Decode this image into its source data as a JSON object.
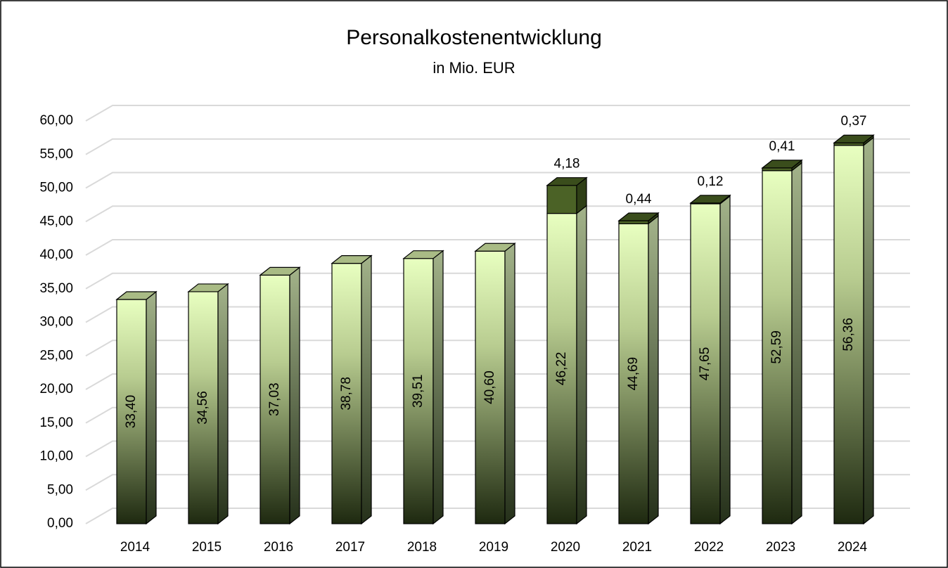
{
  "chart_data": {
    "type": "bar",
    "stacked": true,
    "title": "Personalkostenentwicklung",
    "subtitle": "in Mio. EUR",
    "categories": [
      "2014",
      "2015",
      "2016",
      "2017",
      "2018",
      "2019",
      "2020",
      "2021",
      "2022",
      "2023",
      "2024"
    ],
    "series": [
      {
        "color": "#e8ffc0",
        "values": [
          33.4,
          34.56,
          37.03,
          38.78,
          39.51,
          40.6,
          46.22,
          44.69,
          47.65,
          52.59,
          56.36
        ],
        "value_labels": [
          "33,40",
          "34,56",
          "37,03",
          "38,78",
          "39,51",
          "40,60",
          "46,22",
          "44,69",
          "47,65",
          "52,59",
          "56,36"
        ]
      },
      {
        "color": "#4b6226",
        "values": [
          null,
          null,
          null,
          null,
          null,
          null,
          4.18,
          0.44,
          0.12,
          0.41,
          0.37
        ],
        "value_labels": [
          null,
          null,
          null,
          null,
          null,
          null,
          "4,18",
          "0,44",
          "0,12",
          "0,41",
          "0,37"
        ]
      }
    ],
    "ylim": [
      0,
      60
    ],
    "yticks": [
      {
        "value": 0,
        "label": "0,00"
      },
      {
        "value": 5,
        "label": "5,00"
      },
      {
        "value": 10,
        "label": "10,00"
      },
      {
        "value": 15,
        "label": "15,00"
      },
      {
        "value": 20,
        "label": "20,00"
      },
      {
        "value": 25,
        "label": "25,00"
      },
      {
        "value": 30,
        "label": "30,00"
      },
      {
        "value": 35,
        "label": "35,00"
      },
      {
        "value": 40,
        "label": "40,00"
      },
      {
        "value": 45,
        "label": "45,00"
      },
      {
        "value": 50,
        "label": "50,00"
      },
      {
        "value": 55,
        "label": "55,00"
      },
      {
        "value": 60,
        "label": "60,00"
      }
    ],
    "grid": true
  }
}
